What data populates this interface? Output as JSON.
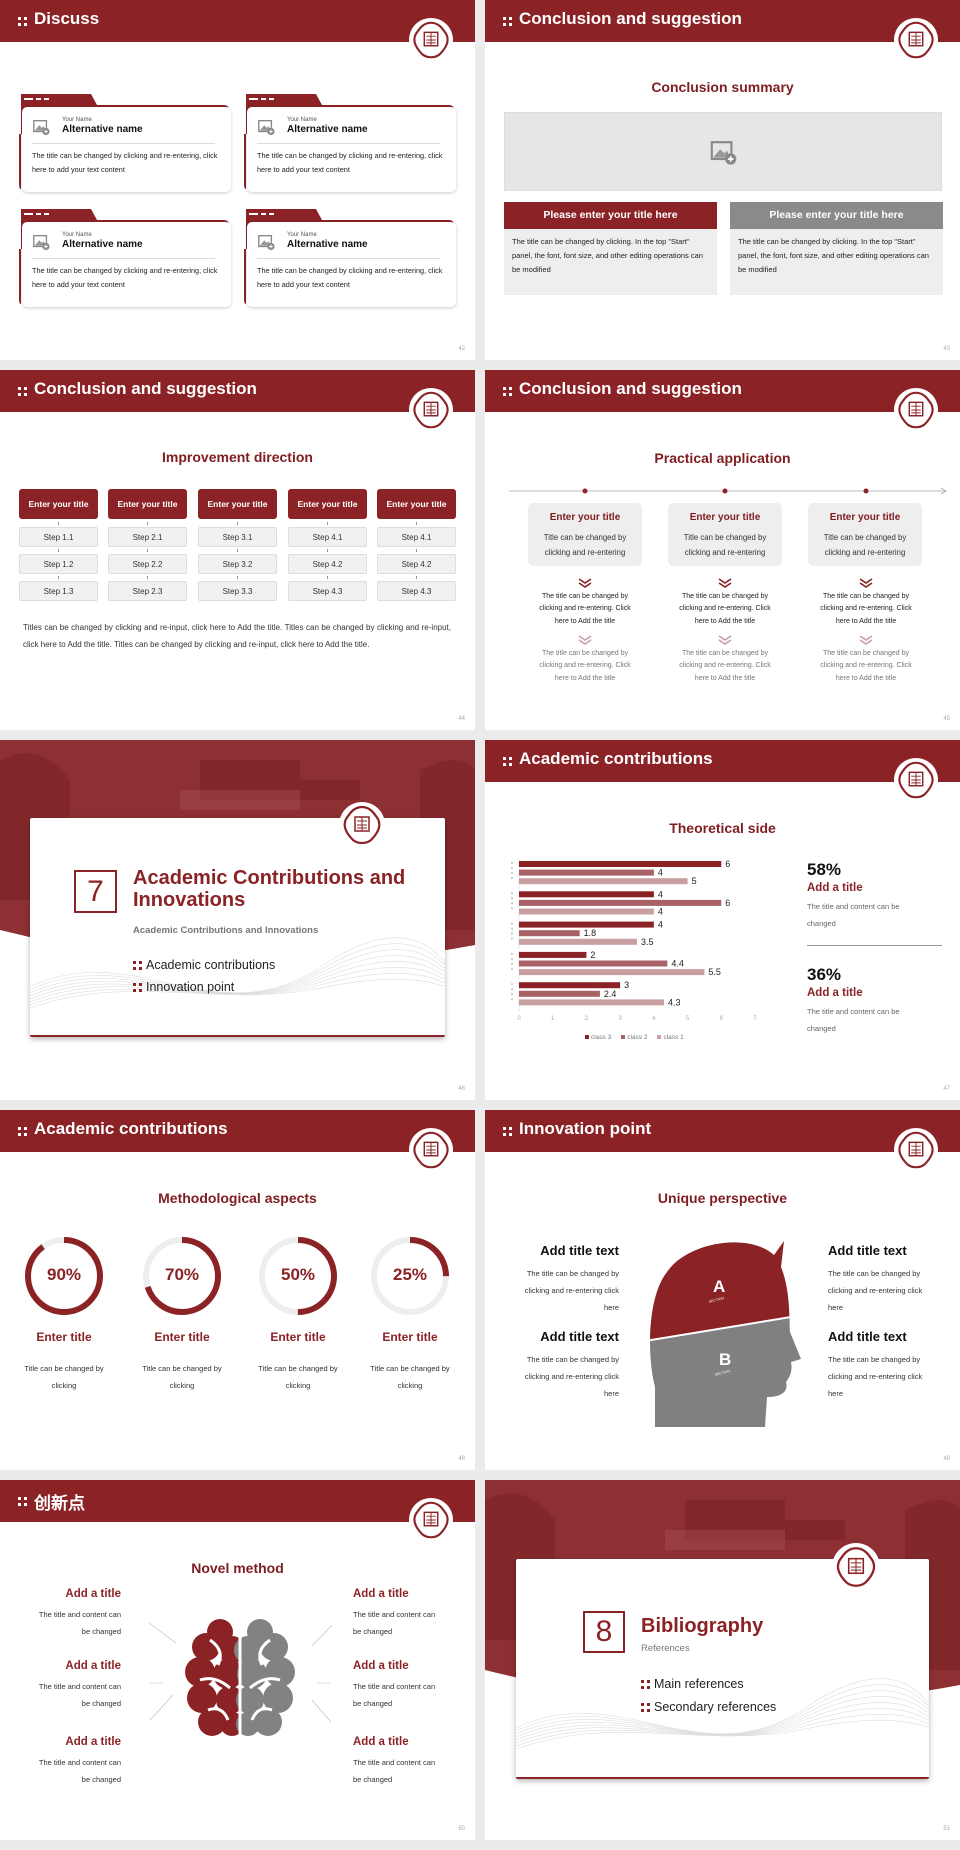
{
  "colors": {
    "primary": "#8b2226",
    "mid": "#a86266",
    "light": "#c9a0a2",
    "gray": "#8a8a8a",
    "panel": "#eeeeee"
  },
  "slides": [
    {
      "title": "Discuss",
      "page": "42",
      "header_icon": "grid-dots-icon",
      "cards": [
        {
          "label": "Your Name",
          "name": "Alternative name",
          "text": "The title can be changed by clicking and re-entering, click here to add your text content"
        },
        {
          "label": "Your Name",
          "name": "Alternative name",
          "text": "The title can be changed by clicking and re-entering, click here to add your text content"
        },
        {
          "label": "Your Name",
          "name": "Alternative name",
          "text": "The title can be changed by clicking and re-entering, click here to add your text content"
        },
        {
          "label": "Your Name",
          "name": "Alternative name",
          "text": "The title can be changed by clicking and re-entering, click here to add your text content"
        }
      ]
    },
    {
      "title": "Conclusion and suggestion",
      "page": "43",
      "subtitle": "Conclusion summary",
      "boxes": [
        {
          "title": "Please enter your title here",
          "text": "The title can be changed by clicking. In the top \"Start\" panel, the font, font size, and other editing operations can be modified"
        },
        {
          "title": "Please enter your title here",
          "text": "The title can be changed by clicking. In the top \"Start\" panel, the font, font size, and other editing operations can be modified"
        }
      ]
    },
    {
      "title": "Conclusion and suggestion",
      "page": "44",
      "subtitle": "Improvement direction",
      "columns": [
        {
          "title": "Enter your title",
          "steps": [
            "Step 1.1",
            "Step 1.2",
            "Step 1.3"
          ]
        },
        {
          "title": "Enter your title",
          "steps": [
            "Step 2.1",
            "Step 2.2",
            "Step 2.3"
          ]
        },
        {
          "title": "Enter your title",
          "steps": [
            "Step 3.1",
            "Step 3.2",
            "Step 3.3"
          ]
        },
        {
          "title": "Enter your title",
          "steps": [
            "Step 4.1",
            "Step 4.2",
            "Step 4.3"
          ]
        },
        {
          "title": "Enter your title",
          "steps": [
            "Step 4.1",
            "Step 4.2",
            "Step 4.3"
          ]
        }
      ],
      "paragraph": "Titles can be changed by clicking and re-input, click here to Add the title. Titles can be changed by clicking and re-input, click here to Add the title. Titles can be changed by clicking and re-input, click here to Add the title."
    },
    {
      "title": "Conclusion and suggestion",
      "page": "45",
      "subtitle": "Practical application",
      "items": [
        {
          "title": "Enter your title",
          "text": "Title can be changed by clicking and re-entering",
          "detail1": "The title can be changed by clicking and re-entering. Click here to Add the title",
          "detail2": "The title can be changed by clicking and re-entering. Click here to Add the title"
        },
        {
          "title": "Enter your title",
          "text": "Title can be changed by clicking and re-entering",
          "detail1": "The title can be changed by clicking and re-entering. Click here to Add the title",
          "detail2": "The title can be changed by clicking and re-entering. Click here to Add the title"
        },
        {
          "title": "Enter your title",
          "text": "Title can be changed by clicking and re-entering",
          "detail1": "The title can be changed by clicking and re-entering. Click here to Add the title",
          "detail2": "The title can be changed by clicking and re-entering. Click here to Add the title"
        }
      ]
    },
    {
      "page": "46",
      "number": "7",
      "title": "Academic Contributions and Innovations",
      "subtitle": "Academic Contributions and Innovations",
      "items": [
        "Academic contributions",
        "Innovation point"
      ]
    },
    {
      "title": "Academic contributions",
      "page": "47",
      "subtitle": "Theoretical side",
      "stats": [
        {
          "value": "58%",
          "title": "Add a title",
          "text": "The title and content can be changed"
        },
        {
          "value": "36%",
          "title": "Add a title",
          "text": "The title and content can be changed"
        }
      ]
    },
    {
      "title": "Academic contributions",
      "page": "48",
      "subtitle": "Methodological aspects",
      "rings": [
        {
          "label": "90%",
          "value": 90,
          "title": "Enter title",
          "text": "Title can be changed by clicking"
        },
        {
          "label": "70%",
          "value": 70,
          "title": "Enter title",
          "text": "Title can be changed by clicking"
        },
        {
          "label": "50%",
          "value": 50,
          "title": "Enter title",
          "text": "Title can be changed by clicking"
        },
        {
          "label": "25%",
          "value": 25,
          "title": "Enter title",
          "text": "Title can be changed by clicking"
        }
      ]
    },
    {
      "title": "Innovation point",
      "page": "49",
      "subtitle": "Unique perspective",
      "items": [
        {
          "title": "Add title text",
          "text": "The title can be changed by clicking and re-entering click here"
        },
        {
          "title": "Add title text",
          "text": "The title can be changed by clicking and re-entering click here"
        },
        {
          "title": "Add title text",
          "text": "The title can be changed by clicking and re-entering click here"
        },
        {
          "title": "Add title text",
          "text": "The title can be changed by clicking and re-entering click here"
        }
      ],
      "sections": [
        "A",
        "B"
      ],
      "section_label": "SECTION"
    },
    {
      "title": "创新点",
      "page": "50",
      "subtitle": "Novel method",
      "items": [
        {
          "title": "Add a title",
          "text": "The title and content can be changed"
        },
        {
          "title": "Add a title",
          "text": "The title and content can be changed"
        },
        {
          "title": "Add a title",
          "text": "The title and content can be changed"
        },
        {
          "title": "Add a title",
          "text": "The title and content can be changed"
        },
        {
          "title": "Add a title",
          "text": "The title and content can be changed"
        },
        {
          "title": "Add a title",
          "text": "The title and content can be changed"
        }
      ]
    },
    {
      "page": "51",
      "number": "8",
      "title": "Bibliography",
      "subtitle": "References",
      "items": [
        "Main references",
        "Secondary references"
      ]
    }
  ],
  "chart_data": {
    "type": "bar",
    "orientation": "horizontal",
    "series": [
      {
        "name": "class 3",
        "values": [
          6,
          4,
          4,
          2,
          3
        ]
      },
      {
        "name": "class 2",
        "values": [
          4,
          6,
          1.8,
          4.4,
          2.4
        ]
      },
      {
        "name": "class 1",
        "values": [
          5,
          4,
          3.5,
          5.5,
          4.3
        ]
      }
    ],
    "xlim": [
      0,
      7
    ],
    "xticks": [
      "0",
      "1",
      "2",
      "3",
      "4",
      "5",
      "6",
      "7"
    ],
    "legend": "bottom",
    "grid": false,
    "data_labels": true
  }
}
